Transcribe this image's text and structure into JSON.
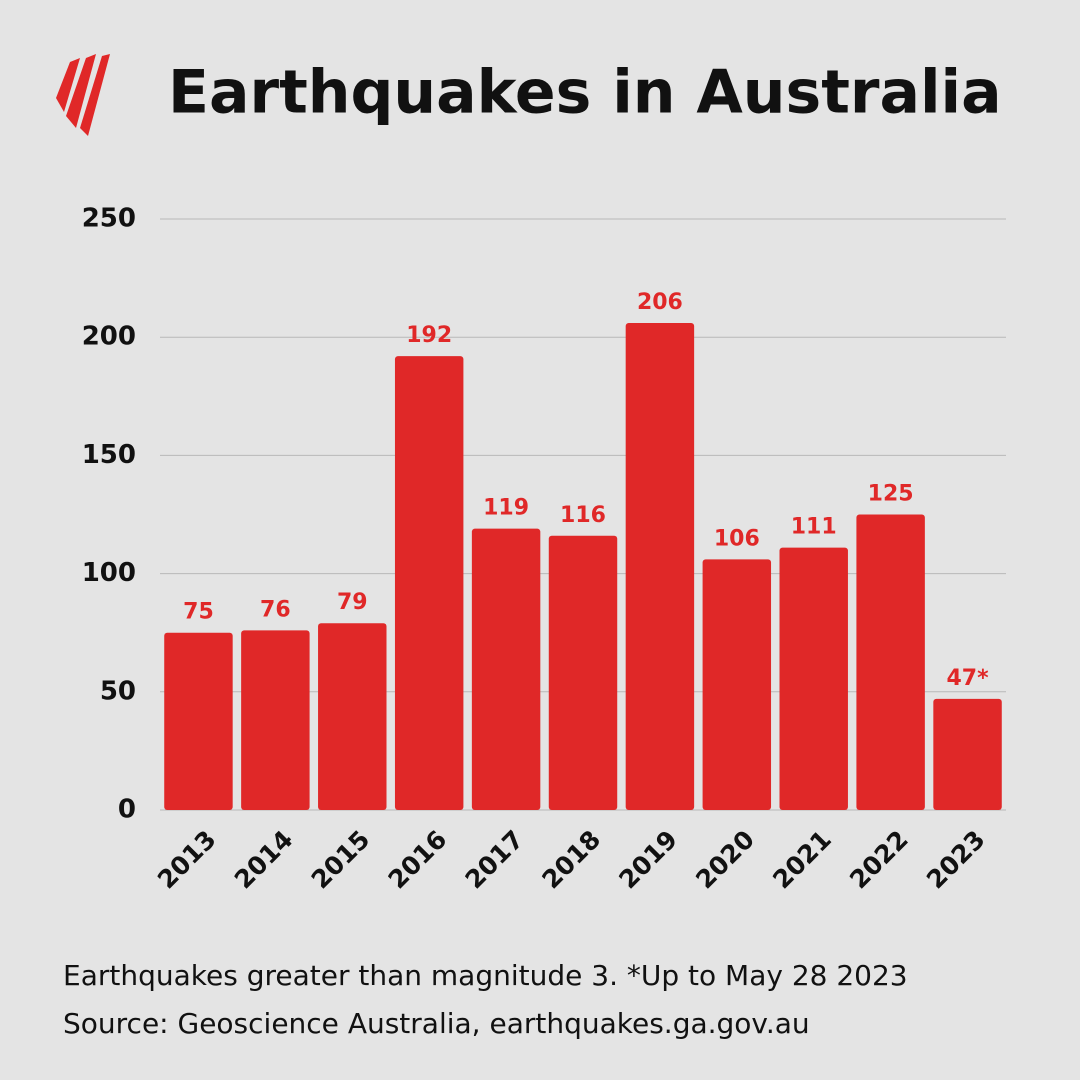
{
  "chart_data": {
    "type": "bar",
    "title": "Earthquakes in Australia",
    "categories": [
      "2013",
      "2014",
      "2015",
      "2016",
      "2017",
      "2018",
      "2019",
      "2020",
      "2021",
      "2022",
      "2023"
    ],
    "values": [
      75,
      76,
      79,
      192,
      119,
      116,
      206,
      106,
      111,
      125,
      47
    ],
    "value_labels": [
      "75",
      "76",
      "79",
      "192",
      "119",
      "116",
      "206",
      "106",
      "111",
      "125",
      "47*"
    ],
    "color": "#e02828",
    "ylim": [
      0,
      250
    ],
    "yticks": [
      0,
      50,
      100,
      150,
      200,
      250
    ],
    "grid": true,
    "footnote": "Earthquakes greater than magnitude 3.  *Up to May 28 2023",
    "source": "Source: Geoscience Australia, earthquakes.ga.gov.au"
  }
}
